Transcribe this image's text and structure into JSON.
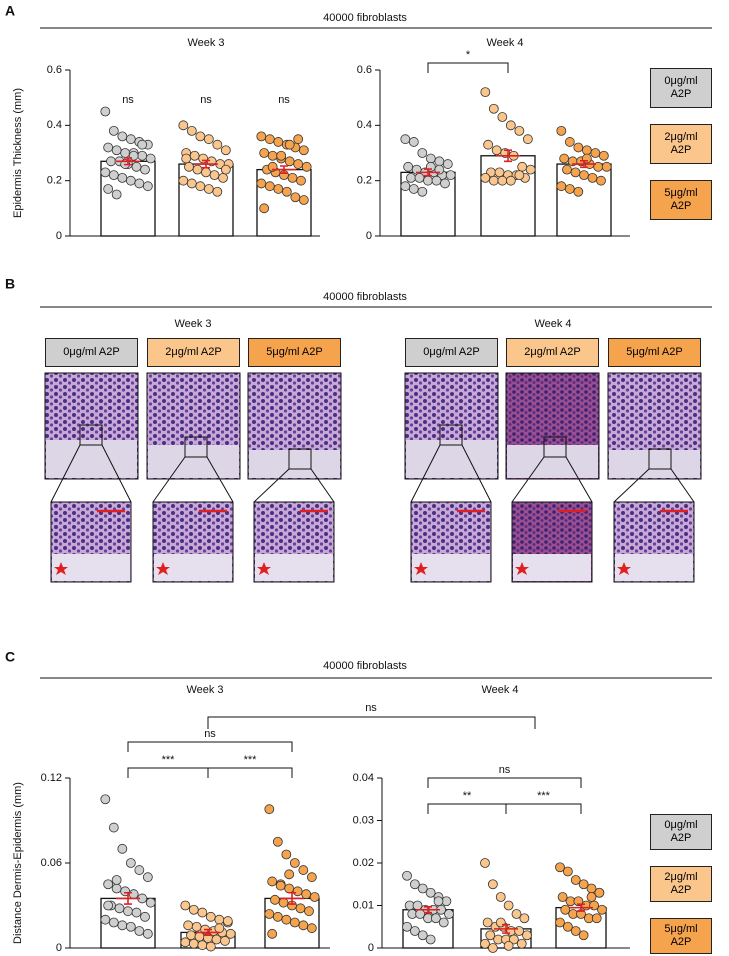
{
  "panel_a": {
    "label": "A",
    "title": "40000 fibroblasts"
  },
  "panel_b": {
    "label": "B",
    "title": "40000 fibroblasts",
    "weeks": [
      {
        "title": "Week 3",
        "conditions": [
          "0μg/ml A2P",
          "2μg/ml A2P",
          "5μg/ml A2P"
        ]
      },
      {
        "title": "Week 4",
        "conditions": [
          "0μg/ml A2P",
          "2μg/ml A2P",
          "5μg/ml A2P"
        ]
      }
    ]
  },
  "panel_c": {
    "label": "C",
    "title": "40000 fibroblasts",
    "cross_bracket": "ns"
  },
  "chart_data": [
    {
      "type": "bar",
      "title": "Week 3",
      "ylabel": "Epidermis Thickness (mm)",
      "categories": [
        "0μg/ml A2P",
        "2μg/ml A2P",
        "5μg/ml A2P"
      ],
      "colors": [
        "#cfcfcf",
        "#fbc68c",
        "#f5a34c"
      ],
      "values": [
        0.27,
        0.26,
        0.24
      ],
      "errors": [
        0.012,
        0.013,
        0.013
      ],
      "points": [
        [
          0.45,
          0.38,
          0.36,
          0.35,
          0.34,
          0.33,
          0.32,
          0.31,
          0.3,
          0.3,
          0.29,
          0.28,
          0.27,
          0.27,
          0.26,
          0.25,
          0.24,
          0.23,
          0.22,
          0.21,
          0.2,
          0.19,
          0.18,
          0.17,
          0.15,
          0.26,
          0.29,
          0.33
        ],
        [
          0.4,
          0.38,
          0.36,
          0.35,
          0.33,
          0.31,
          0.3,
          0.29,
          0.28,
          0.27,
          0.26,
          0.26,
          0.25,
          0.24,
          0.23,
          0.22,
          0.21,
          0.2,
          0.19,
          0.18,
          0.17,
          0.16,
          0.24,
          0.28
        ],
        [
          0.36,
          0.35,
          0.34,
          0.33,
          0.32,
          0.31,
          0.3,
          0.29,
          0.28,
          0.27,
          0.26,
          0.25,
          0.24,
          0.23,
          0.22,
          0.21,
          0.2,
          0.19,
          0.18,
          0.17,
          0.16,
          0.14,
          0.13,
          0.1,
          0.25,
          0.29,
          0.33,
          0.35
        ]
      ],
      "labels": [
        "ns",
        "ns",
        "ns"
      ],
      "ylim": [
        0,
        0.6
      ],
      "yticks": [
        0,
        0.2,
        0.4,
        0.6
      ]
    },
    {
      "type": "bar",
      "title": "Week 4",
      "legend": true,
      "categories": [
        "0μg/ml A2P",
        "2μg/ml A2P",
        "5μg/ml A2P"
      ],
      "colors": [
        "#cfcfcf",
        "#fbc68c",
        "#f5a34c"
      ],
      "values": [
        0.23,
        0.29,
        0.26
      ],
      "errors": [
        0.012,
        0.02,
        0.012
      ],
      "points": [
        [
          0.35,
          0.34,
          0.3,
          0.28,
          0.27,
          0.26,
          0.25,
          0.24,
          0.23,
          0.23,
          0.22,
          0.22,
          0.21,
          0.21,
          0.2,
          0.2,
          0.19,
          0.18,
          0.17,
          0.16,
          0.25,
          0.24
        ],
        [
          0.52,
          0.46,
          0.43,
          0.4,
          0.38,
          0.35,
          0.33,
          0.31,
          0.3,
          0.29,
          0.25,
          0.24,
          0.23,
          0.23,
          0.22,
          0.22,
          0.21,
          0.21,
          0.2,
          0.2,
          0.2,
          0.22
        ],
        [
          0.38,
          0.34,
          0.32,
          0.31,
          0.3,
          0.29,
          0.28,
          0.27,
          0.27,
          0.26,
          0.25,
          0.25,
          0.24,
          0.23,
          0.22,
          0.21,
          0.2,
          0.18,
          0.17,
          0.16,
          0.28
        ]
      ],
      "brackets": [
        {
          "pair": [
            "0μg/ml A2P",
            "2μg/ml A2P"
          ],
          "text": "*"
        }
      ],
      "ylim": [
        0,
        0.6
      ],
      "yticks": [
        0,
        0.2,
        0.4,
        0.6
      ]
    },
    {
      "type": "bar",
      "title": "Week 3",
      "ylabel": "Distance Dermis-Epidermis (mm)",
      "categories": [
        "0μg/ml A2P",
        "2μg/ml A2P",
        "5μg/ml A2P"
      ],
      "colors": [
        "#cfcfcf",
        "#fbc68c",
        "#f5a34c"
      ],
      "values": [
        0.035,
        0.011,
        0.035
      ],
      "errors": [
        0.004,
        0.002,
        0.004
      ],
      "points": [
        [
          0.105,
          0.085,
          0.07,
          0.06,
          0.055,
          0.05,
          0.045,
          0.042,
          0.04,
          0.038,
          0.035,
          0.032,
          0.03,
          0.028,
          0.026,
          0.025,
          0.022,
          0.02,
          0.018,
          0.016,
          0.015,
          0.012,
          0.01,
          0.03,
          0.048
        ],
        [
          0.03,
          0.027,
          0.025,
          0.022,
          0.02,
          0.018,
          0.016,
          0.015,
          0.013,
          0.012,
          0.011,
          0.01,
          0.009,
          0.008,
          0.007,
          0.006,
          0.005,
          0.004,
          0.003,
          0.002,
          0.001,
          0.014,
          0.019
        ],
        [
          0.098,
          0.075,
          0.066,
          0.06,
          0.055,
          0.05,
          0.047,
          0.045,
          0.042,
          0.04,
          0.038,
          0.036,
          0.034,
          0.032,
          0.03,
          0.028,
          0.026,
          0.024,
          0.022,
          0.02,
          0.018,
          0.016,
          0.014,
          0.01,
          0.044,
          0.052
        ]
      ],
      "brackets": [
        {
          "pair": [
            "0μg/ml A2P",
            "2μg/ml A2P"
          ],
          "text": "***"
        },
        {
          "pair": [
            "2μg/ml A2P",
            "5μg/ml A2P"
          ],
          "text": "***"
        },
        {
          "pair": [
            "0μg/ml A2P",
            "5μg/ml A2P"
          ],
          "text": "ns"
        }
      ],
      "ylim": [
        0,
        0.12
      ],
      "yticks": [
        0,
        0.06,
        0.12
      ]
    },
    {
      "type": "bar",
      "title": "Week 4",
      "legend": true,
      "categories": [
        "0μg/ml A2P",
        "2μg/ml A2P",
        "5μg/ml A2P"
      ],
      "colors": [
        "#cfcfcf",
        "#fbc68c",
        "#f5a34c"
      ],
      "values": [
        0.009,
        0.0045,
        0.0095
      ],
      "errors": [
        0.0007,
        0.001,
        0.0008
      ],
      "points": [
        [
          0.017,
          0.015,
          0.014,
          0.013,
          0.012,
          0.011,
          0.01,
          0.01,
          0.009,
          0.009,
          0.009,
          0.008,
          0.008,
          0.008,
          0.007,
          0.007,
          0.006,
          0.005,
          0.004,
          0.003,
          0.002,
          0.011
        ],
        [
          0.02,
          0.015,
          0.012,
          0.01,
          0.008,
          0.007,
          0.006,
          0.005,
          0.005,
          0.004,
          0.004,
          0.003,
          0.003,
          0.002,
          0.002,
          0.002,
          0.001,
          0.001,
          0,
          0.006,
          0.0005
        ],
        [
          0.019,
          0.018,
          0.016,
          0.015,
          0.014,
          0.013,
          0.012,
          0.011,
          0.011,
          0.01,
          0.01,
          0.009,
          0.009,
          0.008,
          0.008,
          0.007,
          0.007,
          0.006,
          0.005,
          0.004,
          0.003,
          0.012,
          0.013
        ]
      ],
      "brackets": [
        {
          "pair": [
            "0μg/ml A2P",
            "2μg/ml A2P"
          ],
          "text": "**"
        },
        {
          "pair": [
            "2μg/ml A2P",
            "5μg/ml A2P"
          ],
          "text": "***"
        },
        {
          "pair": [
            "0μg/ml A2P",
            "5μg/ml A2P"
          ],
          "text": "ns"
        }
      ],
      "ylim": [
        0,
        0.04
      ],
      "yticks": [
        0,
        0.01,
        0.02,
        0.03,
        0.04
      ]
    }
  ]
}
